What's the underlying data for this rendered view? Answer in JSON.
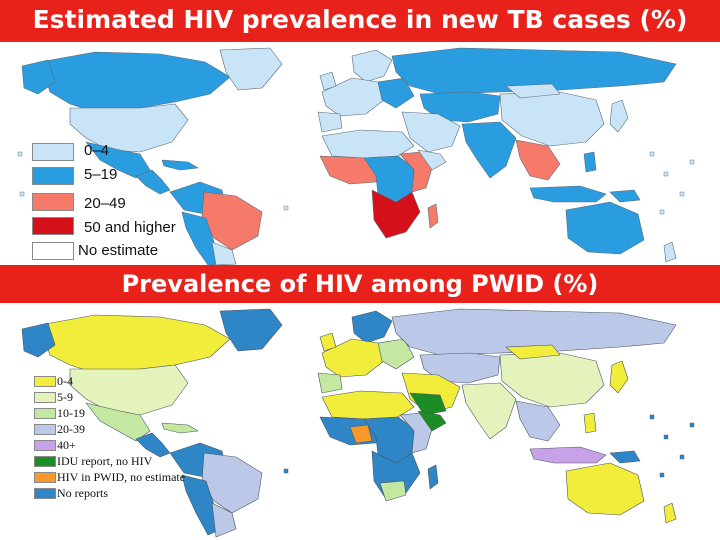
{
  "map1": {
    "title": "Estimated HIV prevalence in new TB cases (%)",
    "legend": [
      {
        "label": "0–4",
        "color": "#c9e3f7"
      },
      {
        "label": "5–19",
        "color": "#2a9de0"
      },
      {
        "label": "20–49",
        "color": "#f57a6a"
      },
      {
        "label": "50 and higher",
        "color": "#d4111a"
      },
      {
        "label": "No estimate",
        "color": "#ffffff"
      }
    ]
  },
  "map2": {
    "title": "Prevalence of HIV among PWID (%)",
    "legend": [
      {
        "label": "0-4",
        "color": "#f2ec3b"
      },
      {
        "label": "5-9",
        "color": "#e4f2bc"
      },
      {
        "label": "10-19",
        "color": "#c4e7a2"
      },
      {
        "label": "20-39",
        "color": "#bcc8e8"
      },
      {
        "label": "40+",
        "color": "#c8a2e8"
      },
      {
        "label": "IDU report, no HIV",
        "color": "#1c8c24"
      },
      {
        "label": "HIV in PWID, no estimate",
        "color": "#f7982a"
      },
      {
        "label": "No reports",
        "color": "#2e86c6"
      }
    ]
  },
  "colors": {
    "banner": "#e8221b",
    "ocean": "#ffffff",
    "border": "#5a6b7a"
  }
}
